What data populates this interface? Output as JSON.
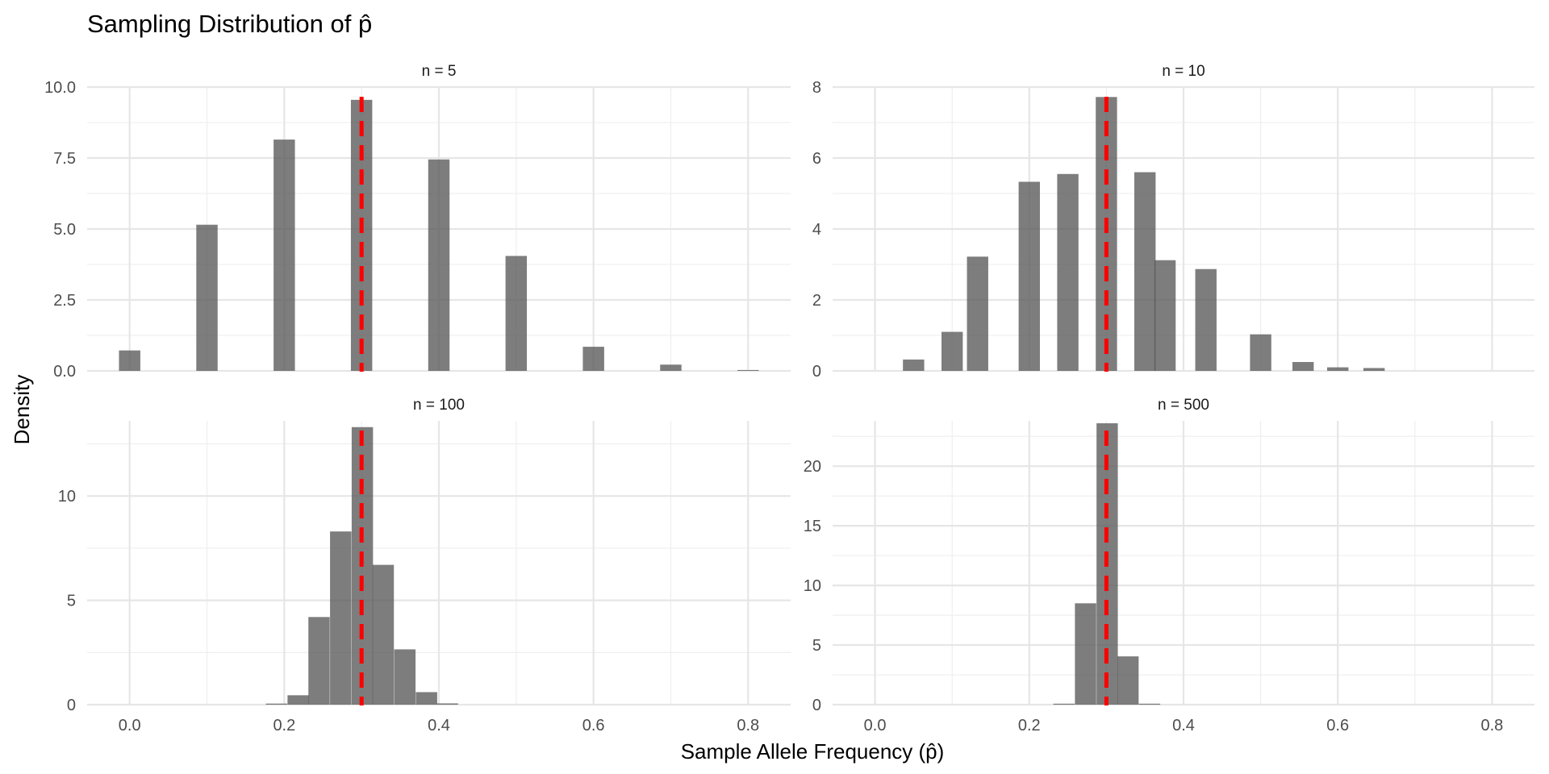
{
  "chart_data": {
    "type": "bar",
    "title": "Sampling Distribution of p̂",
    "xlabel": "Sample Allele Frequency (p̂)",
    "ylabel": "Density",
    "xlim": [
      -0.055,
      0.855
    ],
    "x_ticks": [
      0.0,
      0.2,
      0.4,
      0.6,
      0.8
    ],
    "x_tick_labels": [
      "0.0",
      "0.2",
      "0.4",
      "0.6",
      "0.8"
    ],
    "reference_line": {
      "x": 0.3,
      "color": "#ff0000",
      "style": "dashed"
    },
    "bar_color": "#595959",
    "grid": true,
    "legend": "none",
    "panels": [
      {
        "label": "n = 5",
        "ylim": [
          0,
          10
        ],
        "y_ticks": [
          0,
          2.5,
          5,
          7.5,
          10
        ],
        "y_tick_labels": [
          "0.0",
          "2.5",
          "5.0",
          "7.5",
          "10.0"
        ],
        "bin_width": 0.0276,
        "bars": [
          {
            "x": 0.0,
            "y": 0.72
          },
          {
            "x": 0.1,
            "y": 5.15
          },
          {
            "x": 0.2,
            "y": 8.15
          },
          {
            "x": 0.3,
            "y": 9.55
          },
          {
            "x": 0.4,
            "y": 7.45
          },
          {
            "x": 0.5,
            "y": 4.05
          },
          {
            "x": 0.6,
            "y": 0.85
          },
          {
            "x": 0.7,
            "y": 0.22
          },
          {
            "x": 0.8,
            "y": 0.03
          }
        ]
      },
      {
        "label": "n = 10",
        "ylim": [
          0,
          8
        ],
        "y_ticks": [
          0,
          2,
          4,
          6,
          8
        ],
        "y_tick_labels": [
          "0",
          "2",
          "4",
          "6",
          "8"
        ],
        "bin_width": 0.0276,
        "bars": [
          {
            "x": 0.05,
            "y": 0.32
          },
          {
            "x": 0.1,
            "y": 1.1
          },
          {
            "x": 0.133,
            "y": 3.22
          },
          {
            "x": 0.2,
            "y": 5.33
          },
          {
            "x": 0.25,
            "y": 5.55
          },
          {
            "x": 0.3,
            "y": 7.72
          },
          {
            "x": 0.35,
            "y": 5.6
          },
          {
            "x": 0.376,
            "y": 3.12
          },
          {
            "x": 0.429,
            "y": 2.87
          },
          {
            "x": 0.5,
            "y": 1.03
          },
          {
            "x": 0.555,
            "y": 0.25
          },
          {
            "x": 0.6,
            "y": 0.1
          },
          {
            "x": 0.647,
            "y": 0.08
          }
        ]
      },
      {
        "label": "n = 100",
        "ylim": [
          0,
          13.6
        ],
        "y_ticks": [
          0,
          5,
          10
        ],
        "y_tick_labels": [
          "0",
          "5",
          "10"
        ],
        "bin_width": 0.0276,
        "bars": [
          {
            "x": 0.19,
            "y": 0.05
          },
          {
            "x": 0.218,
            "y": 0.45
          },
          {
            "x": 0.245,
            "y": 4.2
          },
          {
            "x": 0.273,
            "y": 8.3
          },
          {
            "x": 0.301,
            "y": 13.3
          },
          {
            "x": 0.328,
            "y": 6.7
          },
          {
            "x": 0.356,
            "y": 2.65
          },
          {
            "x": 0.384,
            "y": 0.6
          },
          {
            "x": 0.411,
            "y": 0.06
          }
        ]
      },
      {
        "label": "n = 500",
        "ylim": [
          0,
          23.8
        ],
        "y_ticks": [
          0,
          5,
          10,
          15,
          20
        ],
        "y_tick_labels": [
          "0",
          "5",
          "10",
          "15",
          "20"
        ],
        "bin_width": 0.0276,
        "bars": [
          {
            "x": 0.245,
            "y": 0.08
          },
          {
            "x": 0.273,
            "y": 8.5
          },
          {
            "x": 0.301,
            "y": 23.6
          },
          {
            "x": 0.328,
            "y": 4.05
          },
          {
            "x": 0.356,
            "y": 0.08
          }
        ]
      }
    ]
  }
}
